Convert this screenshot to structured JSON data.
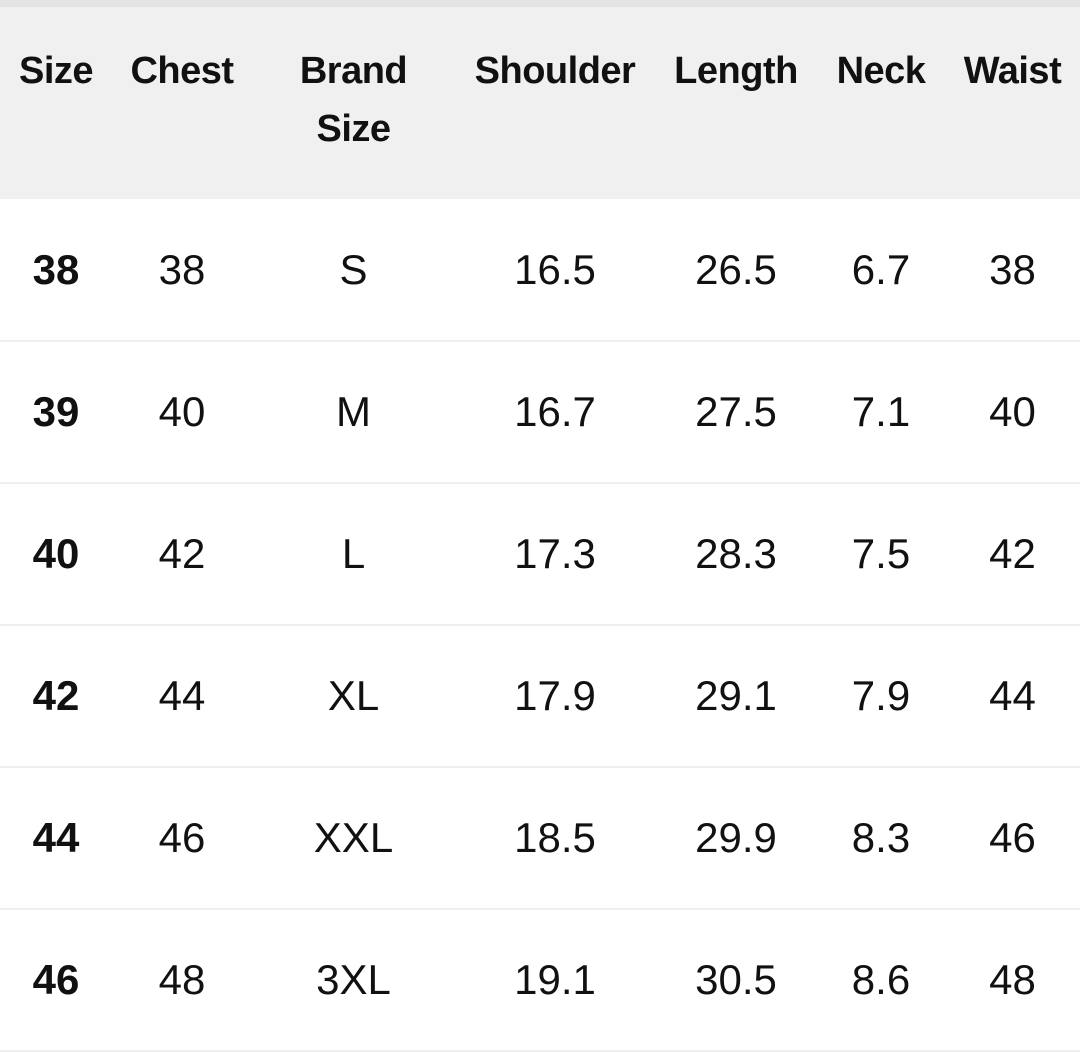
{
  "table": {
    "headers": [
      "Size",
      "Chest",
      "Brand Size",
      "Shoulder",
      "Length",
      "Neck",
      "Waist"
    ],
    "rows": [
      [
        "38",
        "38",
        "S",
        "16.5",
        "26.5",
        "6.7",
        "38"
      ],
      [
        "39",
        "40",
        "M",
        "16.7",
        "27.5",
        "7.1",
        "40"
      ],
      [
        "40",
        "42",
        "L",
        "17.3",
        "28.3",
        "7.5",
        "42"
      ],
      [
        "42",
        "44",
        "XL",
        "17.9",
        "29.1",
        "7.9",
        "44"
      ],
      [
        "44",
        "46",
        "XXL",
        "18.5",
        "29.9",
        "8.3",
        "46"
      ],
      [
        "46",
        "48",
        "3XL",
        "19.1",
        "30.5",
        "8.6",
        "48"
      ]
    ]
  },
  "colors": {
    "header_bg": "#f0f0f0",
    "row_border": "#efefef",
    "text": "#111111"
  }
}
